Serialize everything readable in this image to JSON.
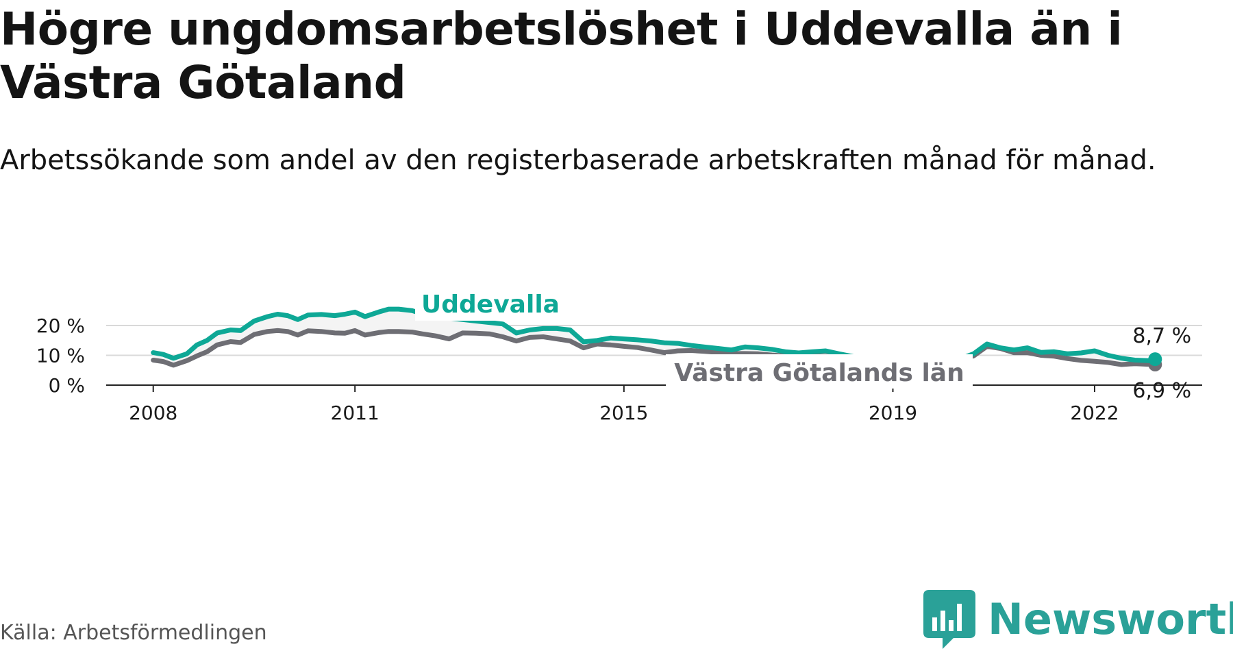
{
  "title": "Högre ungdomsarbetslöshet i Uddevalla än i Västra Götaland",
  "subtitle": "Arbetssökande som andel av den registerbaserade arbetskraften månad för månad.",
  "source": "Källa: Arbetsförmedlingen",
  "brand": {
    "name": "Newsworthy",
    "icon": "newsworthy-logo-icon"
  },
  "colors": {
    "uddevalla": "#0ea896",
    "vg": "#6e6e74",
    "grid": "#d9d9d9",
    "axis": "#222222",
    "brand": "#2aa198",
    "fill": "#f4f4f4"
  },
  "chart_data": {
    "type": "line",
    "title": "Högre ungdomsarbetslöshet i Uddevalla än i Västra Götaland",
    "xlabel": "",
    "ylabel": "",
    "ylim": [
      0,
      20
    ],
    "xlim": [
      2007.3,
      2023.6
    ],
    "y_ticks": [
      {
        "value": 0,
        "label": "0 %"
      },
      {
        "value": 10,
        "label": "10 %"
      },
      {
        "value": 20,
        "label": "20 %"
      }
    ],
    "x_ticks": [
      {
        "value": 2008,
        "label": "2008"
      },
      {
        "value": 2011,
        "label": "2011"
      },
      {
        "value": 2015,
        "label": "2015"
      },
      {
        "value": 2019,
        "label": "2019"
      },
      {
        "value": 2022,
        "label": "2022"
      }
    ],
    "grid": true,
    "series": [
      {
        "name": "Uddevalla",
        "label": "Uddevalla",
        "color": "#0ea896",
        "end_label": "8,7 %",
        "x": [
          2008.0,
          2008.15,
          2008.3,
          2008.5,
          2008.65,
          2008.8,
          2008.95,
          2009.15,
          2009.3,
          2009.5,
          2009.7,
          2009.85,
          2010.0,
          2010.15,
          2010.3,
          2010.5,
          2010.7,
          2010.85,
          2011.0,
          2011.15,
          2011.35,
          2011.5,
          2011.65,
          2011.85,
          2012.0,
          2012.2,
          2012.4,
          2012.6,
          2012.8,
          2013.0,
          2013.2,
          2013.4,
          2013.6,
          2013.8,
          2014.0,
          2014.2,
          2014.4,
          2014.6,
          2014.8,
          2015.0,
          2015.2,
          2015.4,
          2015.6,
          2015.8,
          2016.0,
          2016.2,
          2016.4,
          2016.6,
          2016.8,
          2017.0,
          2017.2,
          2017.4,
          2017.6,
          2017.8,
          2018.0,
          2018.2,
          2018.4,
          2018.6,
          2018.8,
          2019.0,
          2019.2,
          2019.4,
          2019.6,
          2019.8,
          2020.0,
          2020.2,
          2020.4,
          2020.6,
          2020.8,
          2021.0,
          2021.2,
          2021.4,
          2021.6,
          2021.8,
          2022.0,
          2022.2,
          2022.4,
          2022.6,
          2022.8,
          2022.9
        ],
        "y": [
          10.9,
          10.3,
          9.0,
          10.5,
          13.5,
          15.0,
          17.5,
          18.5,
          18.3,
          21.5,
          23.0,
          23.8,
          23.3,
          22.0,
          23.5,
          23.7,
          23.3,
          23.8,
          24.5,
          23.0,
          24.5,
          25.5,
          25.5,
          25.0,
          24.0,
          23.0,
          22.5,
          22.0,
          21.5,
          21.0,
          20.5,
          17.5,
          18.5,
          19.0,
          19.0,
          18.5,
          14.5,
          15.0,
          15.8,
          15.5,
          15.2,
          14.8,
          14.2,
          14.0,
          13.3,
          12.8,
          12.3,
          11.8,
          12.8,
          12.5,
          12.0,
          11.2,
          10.8,
          11.2,
          11.5,
          10.5,
          9.6,
          9.0,
          8.5,
          7.5,
          6.5,
          7.0,
          7.5,
          8.0,
          8.8,
          10.5,
          13.8,
          12.5,
          11.8,
          12.5,
          11.0,
          11.2,
          10.5,
          10.8,
          11.5,
          10.0,
          9.0,
          8.4,
          8.2,
          8.7
        ]
      },
      {
        "name": "Västra Götalands län",
        "label": "Västra Götalands län",
        "color": "#6e6e74",
        "end_label": "6,9 %",
        "x": [
          2008.0,
          2008.15,
          2008.3,
          2008.5,
          2008.65,
          2008.8,
          2008.95,
          2009.15,
          2009.3,
          2009.5,
          2009.7,
          2009.85,
          2010.0,
          2010.15,
          2010.3,
          2010.5,
          2010.7,
          2010.85,
          2011.0,
          2011.15,
          2011.35,
          2011.5,
          2011.65,
          2011.85,
          2012.0,
          2012.2,
          2012.4,
          2012.6,
          2012.8,
          2013.0,
          2013.2,
          2013.4,
          2013.6,
          2013.8,
          2014.0,
          2014.2,
          2014.4,
          2014.6,
          2014.8,
          2015.0,
          2015.2,
          2015.4,
          2015.6,
          2015.8,
          2016.0,
          2016.2,
          2016.4,
          2016.6,
          2016.8,
          2017.0,
          2017.2,
          2017.4,
          2017.6,
          2017.8,
          2018.0,
          2018.2,
          2018.4,
          2018.6,
          2018.8,
          2019.0,
          2019.2,
          2019.4,
          2019.6,
          2019.8,
          2020.0,
          2020.2,
          2020.4,
          2020.6,
          2020.8,
          2021.0,
          2021.2,
          2021.4,
          2021.6,
          2021.8,
          2022.0,
          2022.2,
          2022.4,
          2022.6,
          2022.8,
          2022.9
        ],
        "y": [
          8.4,
          7.9,
          6.7,
          8.2,
          9.8,
          11.2,
          13.5,
          14.6,
          14.3,
          17.0,
          18.0,
          18.3,
          18.0,
          16.8,
          18.2,
          18.0,
          17.5,
          17.4,
          18.3,
          16.8,
          17.6,
          18.0,
          18.0,
          17.8,
          17.2,
          16.5,
          15.5,
          17.5,
          17.4,
          17.2,
          16.2,
          14.8,
          16.0,
          16.2,
          15.5,
          14.8,
          12.5,
          13.8,
          13.5,
          13.0,
          12.6,
          11.8,
          10.9,
          11.5,
          11.6,
          11.3,
          11.0,
          10.6,
          10.6,
          10.5,
          10.1,
          9.8,
          9.5,
          9.8,
          9.8,
          9.2,
          8.5,
          8.0,
          7.5,
          6.8,
          6.3,
          6.8,
          7.5,
          8.0,
          8.5,
          9.8,
          13.0,
          12.3,
          10.9,
          10.9,
          10.0,
          9.7,
          8.9,
          8.3,
          8.0,
          7.6,
          6.9,
          7.2,
          7.0,
          6.9
        ]
      }
    ]
  }
}
